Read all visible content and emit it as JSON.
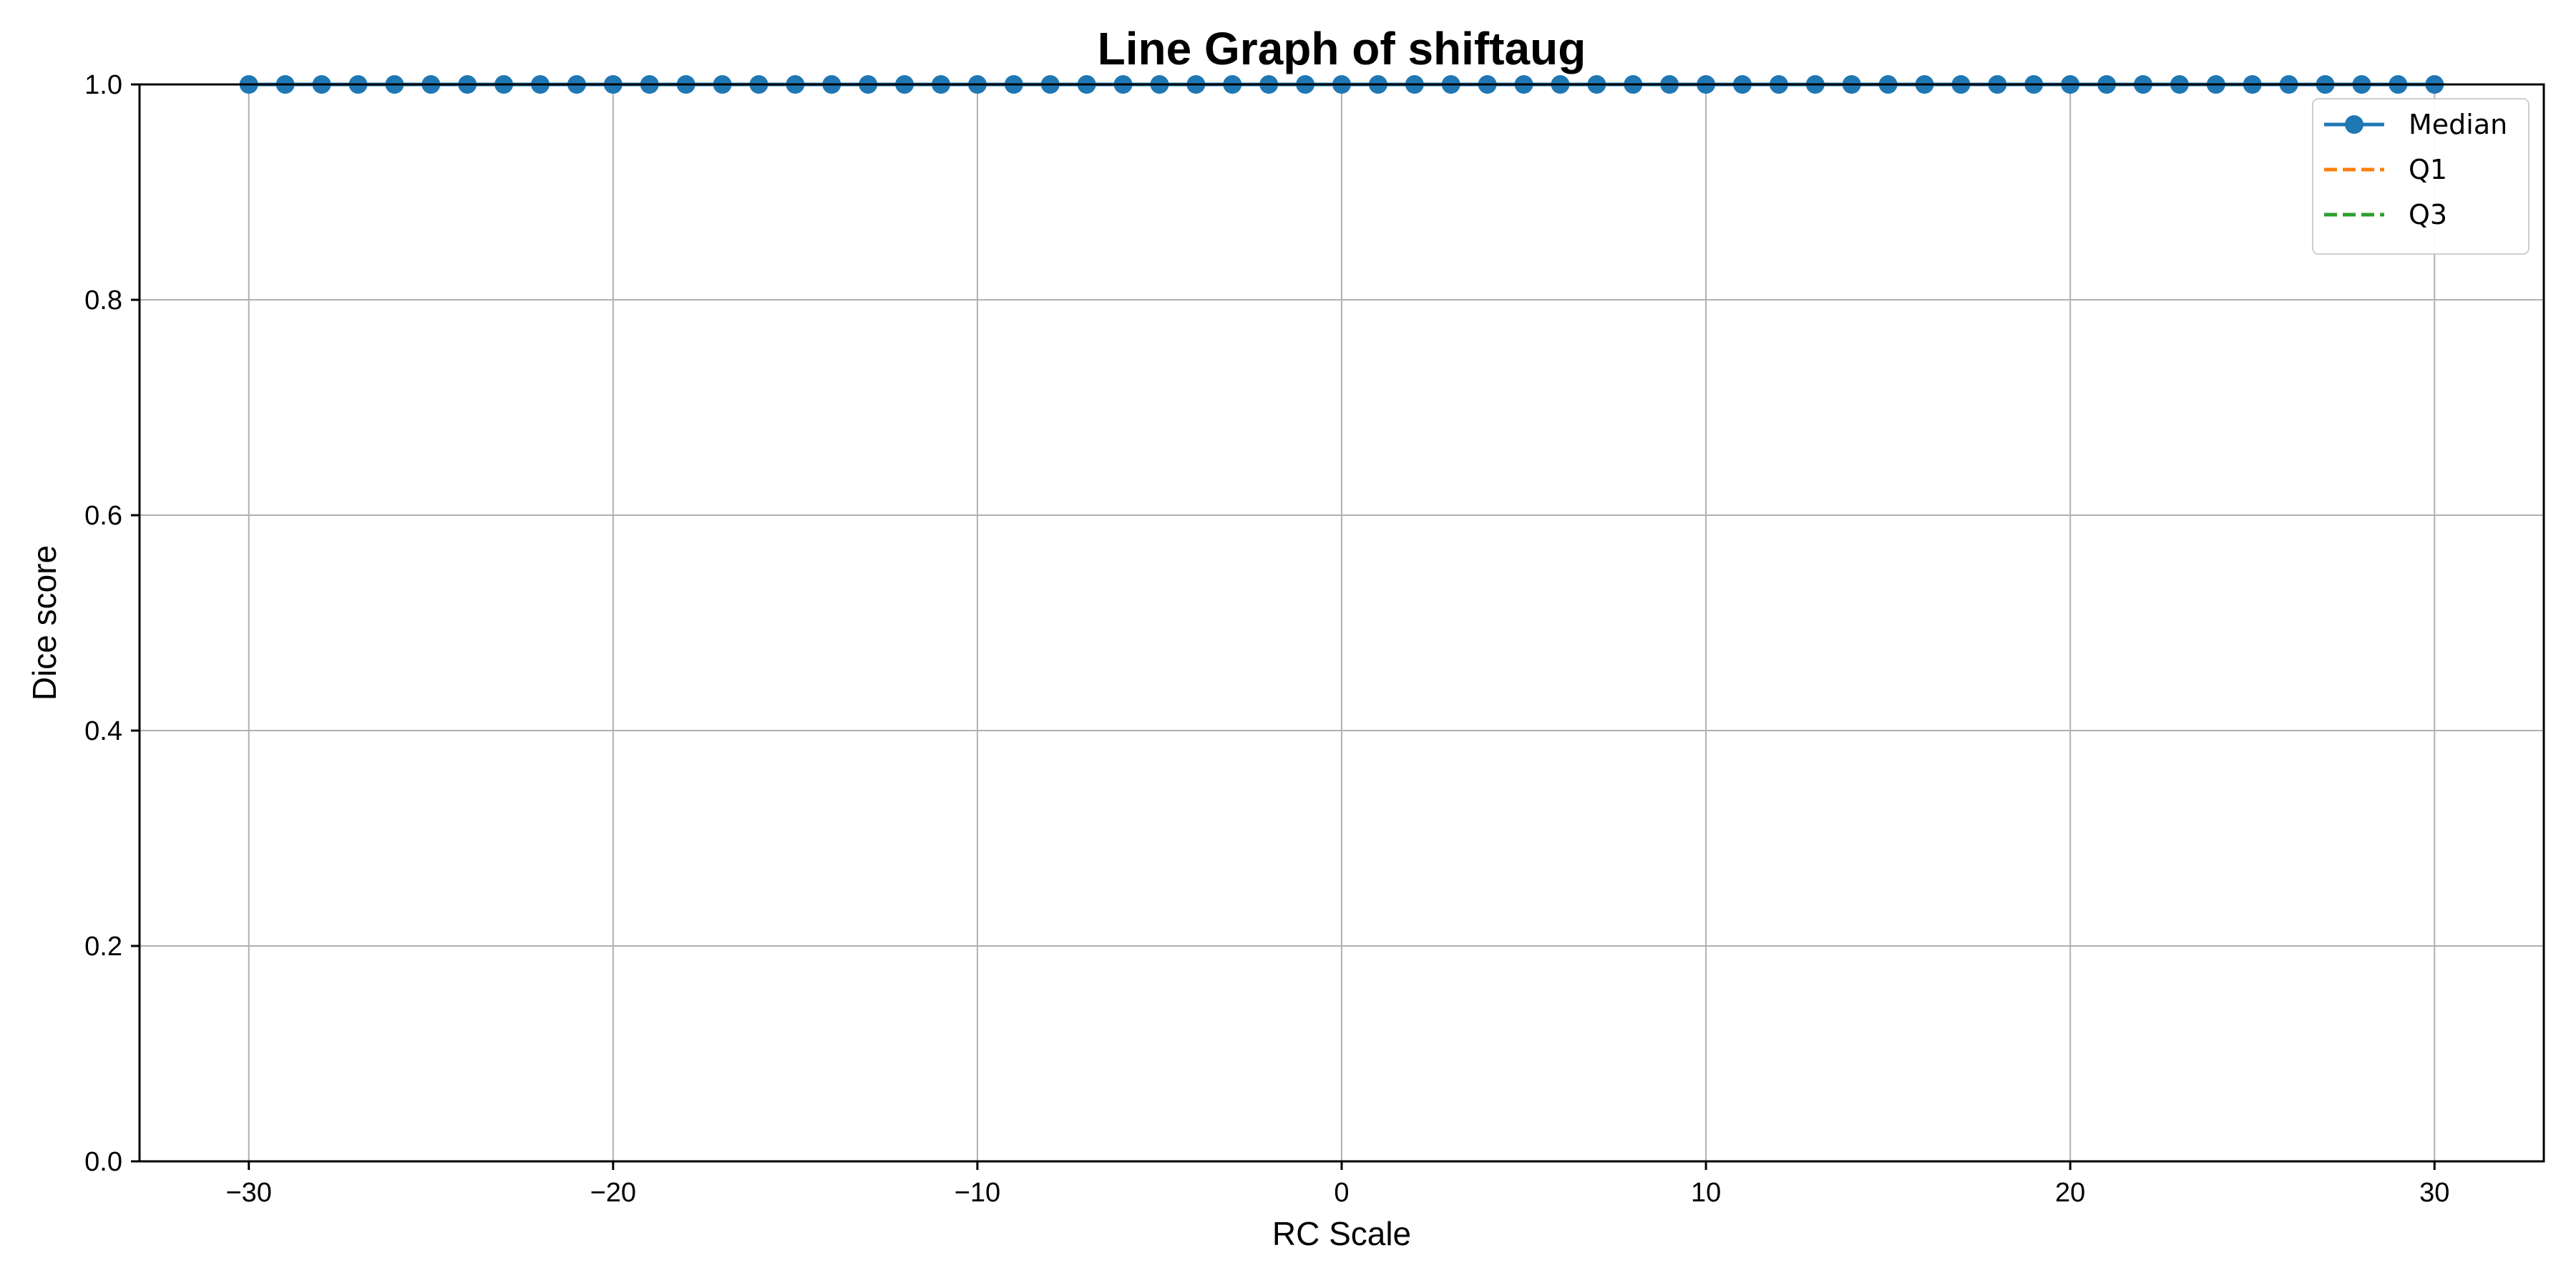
{
  "chart_data": {
    "type": "line",
    "title": "Line Graph of shiftaug",
    "xlabel": "RC Scale",
    "ylabel": "Dice score",
    "xlim": [
      -33,
      33
    ],
    "ylim": [
      0.0,
      1.0
    ],
    "xticks": [
      -30,
      -20,
      -10,
      0,
      10,
      20,
      30
    ],
    "xtick_labels": [
      "−30",
      "−20",
      "−10",
      "0",
      "10",
      "20",
      "30"
    ],
    "yticks": [
      0.0,
      0.2,
      0.4,
      0.6,
      0.8,
      1.0
    ],
    "ytick_labels": [
      "0.0",
      "0.2",
      "0.4",
      "0.6",
      "0.8",
      "1.0"
    ],
    "grid": true,
    "legend_position": "top-right",
    "x": [
      -30,
      -29,
      -28,
      -27,
      -26,
      -25,
      -24,
      -23,
      -22,
      -21,
      -20,
      -19,
      -18,
      -17,
      -16,
      -15,
      -14,
      -13,
      -12,
      -11,
      -10,
      -9,
      -8,
      -7,
      -6,
      -5,
      -4,
      -3,
      -2,
      -1,
      0,
      1,
      2,
      3,
      4,
      5,
      6,
      7,
      8,
      9,
      10,
      11,
      12,
      13,
      14,
      15,
      16,
      17,
      18,
      19,
      20,
      21,
      22,
      23,
      24,
      25,
      26,
      27,
      28,
      29,
      30
    ],
    "series": [
      {
        "name": "Median",
        "color": "#1f77b4",
        "linestyle": "solid",
        "marker": "circle",
        "values": [
          1,
          1,
          1,
          1,
          1,
          1,
          1,
          1,
          1,
          1,
          1,
          1,
          1,
          1,
          1,
          1,
          1,
          1,
          1,
          1,
          1,
          1,
          1,
          1,
          1,
          1,
          1,
          1,
          1,
          1,
          1,
          1,
          1,
          1,
          1,
          1,
          1,
          1,
          1,
          1,
          1,
          1,
          1,
          1,
          1,
          1,
          1,
          1,
          1,
          1,
          1,
          1,
          1,
          1,
          1,
          1,
          1,
          1,
          1,
          1,
          1
        ]
      },
      {
        "name": "Q1",
        "color": "#ff7f0e",
        "linestyle": "dashed",
        "marker": "none",
        "values": [
          1,
          1,
          1,
          1,
          1,
          1,
          1,
          1,
          1,
          1,
          1,
          1,
          1,
          1,
          1,
          1,
          1,
          1,
          1,
          1,
          1,
          1,
          1,
          1,
          1,
          1,
          1,
          1,
          1,
          1,
          1,
          1,
          1,
          1,
          1,
          1,
          1,
          1,
          1,
          1,
          1,
          1,
          1,
          1,
          1,
          1,
          1,
          1,
          1,
          1,
          1,
          1,
          1,
          1,
          1,
          1,
          1,
          1,
          1,
          1,
          1
        ]
      },
      {
        "name": "Q3",
        "color": "#2ca02c",
        "linestyle": "dashed",
        "marker": "none",
        "values": [
          1,
          1,
          1,
          1,
          1,
          1,
          1,
          1,
          1,
          1,
          1,
          1,
          1,
          1,
          1,
          1,
          1,
          1,
          1,
          1,
          1,
          1,
          1,
          1,
          1,
          1,
          1,
          1,
          1,
          1,
          1,
          1,
          1,
          1,
          1,
          1,
          1,
          1,
          1,
          1,
          1,
          1,
          1,
          1,
          1,
          1,
          1,
          1,
          1,
          1,
          1,
          1,
          1,
          1,
          1,
          1,
          1,
          1,
          1,
          1,
          1
        ]
      }
    ]
  }
}
